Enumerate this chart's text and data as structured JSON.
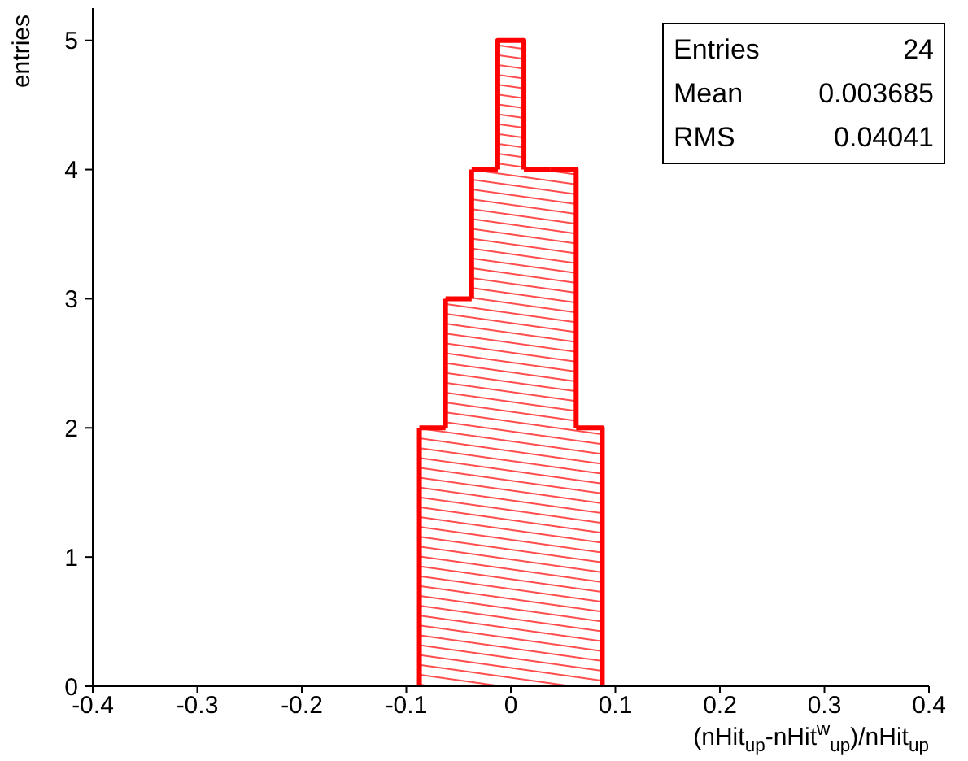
{
  "chart_data": {
    "type": "histogram",
    "xlabel": "(nHit$_{up}$-nHit$^{w}$$_{up}$)/nHit$_{up}$",
    "ylabel": "entries",
    "bins": [
      -0.0875,
      -0.0625,
      -0.0375,
      -0.0125,
      0.0125,
      0.0375,
      0.0625,
      0.0875
    ],
    "values": [
      2,
      3,
      4,
      5,
      4,
      4,
      2
    ],
    "color": "#ff0000",
    "xlim": [
      -0.4,
      0.4
    ],
    "xticks": [
      -0.4,
      -0.3,
      -0.2,
      -0.1,
      0,
      0.1,
      0.2,
      0.3,
      0.4
    ],
    "ylim": [
      0,
      5.25
    ],
    "yticks": [
      0,
      1,
      2,
      3,
      4,
      5
    ],
    "annotations": [
      "Entries",
      "24",
      "Mean",
      "0.003685",
      "RMS",
      "0.04041"
    ]
  }
}
